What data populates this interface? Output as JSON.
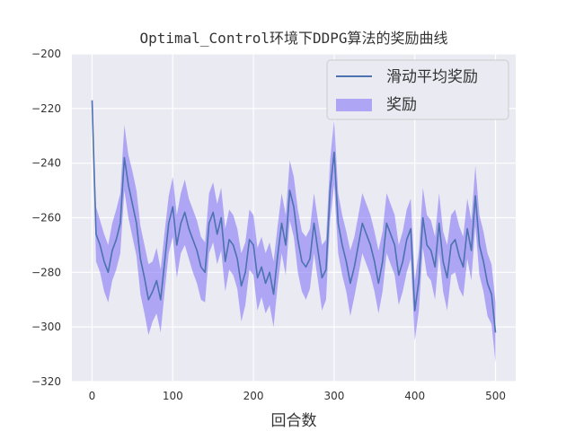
{
  "chart_data": {
    "type": "line",
    "title": "Optimal_Control环境下DDPG算法的奖励曲线",
    "xlabel": "回合数",
    "ylabel": "",
    "xlim": [
      -25,
      525
    ],
    "ylim": [
      -320,
      -200
    ],
    "xticks": [
      0,
      100,
      200,
      300,
      400,
      500
    ],
    "yticks": [
      -320,
      -300,
      -280,
      -260,
      -240,
      -220,
      -200
    ],
    "grid": true,
    "legend_position": "top-right",
    "colors": {
      "line": "#4c72b0",
      "band": "#7b6ef6",
      "background": "#eaeaf2",
      "grid": "#ffffff"
    },
    "series": [
      {
        "name": "滑动平均奖励",
        "kind": "line",
        "x": [
          0,
          5,
          10,
          15,
          20,
          25,
          30,
          35,
          40,
          45,
          50,
          55,
          60,
          65,
          70,
          75,
          80,
          85,
          90,
          95,
          100,
          105,
          110,
          115,
          120,
          125,
          130,
          135,
          140,
          145,
          150,
          155,
          160,
          165,
          170,
          175,
          180,
          185,
          190,
          195,
          200,
          205,
          210,
          215,
          220,
          225,
          230,
          235,
          240,
          245,
          250,
          255,
          260,
          265,
          270,
          275,
          280,
          285,
          290,
          295,
          300,
          305,
          310,
          315,
          320,
          325,
          330,
          335,
          340,
          345,
          350,
          355,
          360,
          365,
          370,
          375,
          380,
          385,
          390,
          395,
          400,
          405,
          410,
          415,
          420,
          425,
          430,
          435,
          440,
          445,
          450,
          455,
          460,
          465,
          470,
          475,
          480,
          485,
          490,
          495,
          500
        ],
        "values": [
          -217,
          -266,
          -270,
          -276,
          -280,
          -272,
          -268,
          -262,
          -238,
          -248,
          -255,
          -262,
          -275,
          -282,
          -290,
          -287,
          -283,
          -290,
          -276,
          -262,
          -256,
          -270,
          -262,
          -258,
          -264,
          -268,
          -272,
          -278,
          -280,
          -262,
          -258,
          -266,
          -260,
          -276,
          -268,
          -270,
          -275,
          -285,
          -280,
          -268,
          -270,
          -282,
          -278,
          -284,
          -280,
          -288,
          -274,
          -262,
          -270,
          -250,
          -256,
          -268,
          -276,
          -278,
          -275,
          -262,
          -272,
          -282,
          -279,
          -250,
          -236,
          -262,
          -270,
          -276,
          -284,
          -278,
          -270,
          -262,
          -266,
          -270,
          -276,
          -284,
          -276,
          -262,
          -266,
          -270,
          -281,
          -276,
          -268,
          -264,
          -294,
          -283,
          -260,
          -270,
          -272,
          -278,
          -262,
          -276,
          -282,
          -270,
          -268,
          -274,
          -278,
          -264,
          -272,
          -252,
          -270,
          -276,
          -284,
          -288,
          -302
        ]
      },
      {
        "name": "奖励",
        "kind": "band",
        "x": [
          0,
          5,
          10,
          15,
          20,
          25,
          30,
          35,
          40,
          45,
          50,
          55,
          60,
          65,
          70,
          75,
          80,
          85,
          90,
          95,
          100,
          105,
          110,
          115,
          120,
          125,
          130,
          135,
          140,
          145,
          150,
          155,
          160,
          165,
          170,
          175,
          180,
          185,
          190,
          195,
          200,
          205,
          210,
          215,
          220,
          225,
          230,
          235,
          240,
          245,
          250,
          255,
          260,
          265,
          270,
          275,
          280,
          285,
          290,
          295,
          300,
          305,
          310,
          315,
          320,
          325,
          330,
          335,
          340,
          345,
          350,
          355,
          360,
          365,
          370,
          375,
          380,
          385,
          390,
          395,
          400,
          405,
          410,
          415,
          420,
          425,
          430,
          435,
          440,
          445,
          450,
          455,
          460,
          465,
          470,
          475,
          480,
          485,
          490,
          495,
          500
        ],
        "upper": [
          -217,
          -256,
          -261,
          -266,
          -270,
          -262,
          -257,
          -251,
          -226,
          -237,
          -243,
          -250,
          -263,
          -270,
          -277,
          -276,
          -271,
          -279,
          -265,
          -252,
          -245,
          -259,
          -251,
          -246,
          -253,
          -257,
          -261,
          -267,
          -269,
          -251,
          -247,
          -255,
          -249,
          -264,
          -257,
          -259,
          -264,
          -273,
          -269,
          -257,
          -259,
          -271,
          -267,
          -273,
          -269,
          -276,
          -263,
          -251,
          -259,
          -239,
          -245,
          -257,
          -265,
          -267,
          -264,
          -251,
          -261,
          -270,
          -268,
          -239,
          -224,
          -251,
          -259,
          -265,
          -272,
          -267,
          -259,
          -251,
          -255,
          -259,
          -265,
          -272,
          -265,
          -251,
          -255,
          -259,
          -270,
          -265,
          -257,
          -253,
          -283,
          -272,
          -249,
          -259,
          -261,
          -267,
          -251,
          -265,
          -270,
          -259,
          -257,
          -263,
          -267,
          -253,
          -261,
          -241,
          -259,
          -265,
          -273,
          -277,
          -291
        ],
        "lower": [
          -217,
          -276,
          -280,
          -287,
          -291,
          -283,
          -279,
          -273,
          -250,
          -260,
          -267,
          -274,
          -288,
          -295,
          -303,
          -298,
          -295,
          -302,
          -287,
          -273,
          -267,
          -282,
          -273,
          -270,
          -275,
          -280,
          -284,
          -290,
          -291,
          -273,
          -269,
          -277,
          -272,
          -287,
          -279,
          -281,
          -286,
          -298,
          -292,
          -279,
          -281,
          -294,
          -289,
          -295,
          -292,
          -300,
          -285,
          -273,
          -281,
          -261,
          -267,
          -280,
          -287,
          -290,
          -286,
          -273,
          -283,
          -294,
          -290,
          -261,
          -248,
          -273,
          -281,
          -287,
          -296,
          -289,
          -281,
          -273,
          -277,
          -281,
          -287,
          -295,
          -287,
          -273,
          -277,
          -281,
          -292,
          -287,
          -280,
          -275,
          -305,
          -294,
          -271,
          -281,
          -283,
          -290,
          -273,
          -287,
          -294,
          -281,
          -280,
          -286,
          -289,
          -275,
          -283,
          -263,
          -281,
          -287,
          -296,
          -299,
          -313
        ]
      }
    ]
  }
}
